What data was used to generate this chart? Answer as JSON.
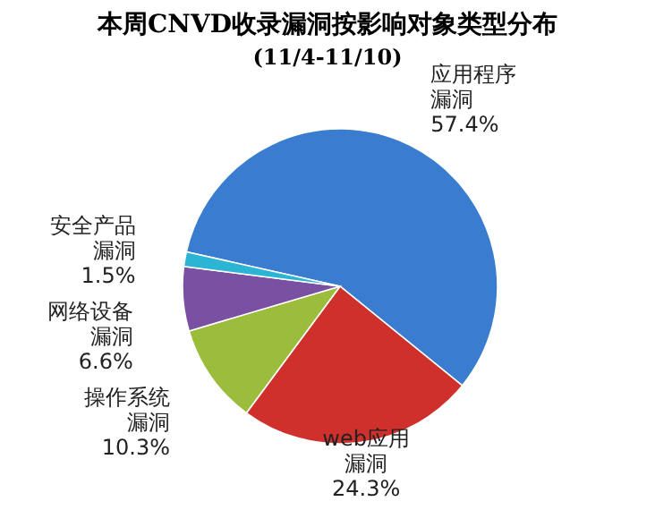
{
  "chart_data": {
    "type": "pie",
    "title": "本周CNVD收录漏洞按影响对象类型分布",
    "subtitle": "(11/4-11/10)",
    "categories": [
      "应用程序漏洞",
      "web应用漏洞",
      "操作系统漏洞",
      "网络设备漏洞",
      "安全产品漏洞"
    ],
    "values": [
      57.4,
      24.3,
      10.3,
      6.6,
      1.5
    ],
    "value_labels": [
      "57.4%",
      "24.3%",
      "10.3%",
      "6.6%",
      "1.5%"
    ],
    "colors": [
      "#3a7dd0",
      "#d0302c",
      "#9cbc3c",
      "#7a50a2",
      "#2cb4d4"
    ]
  }
}
